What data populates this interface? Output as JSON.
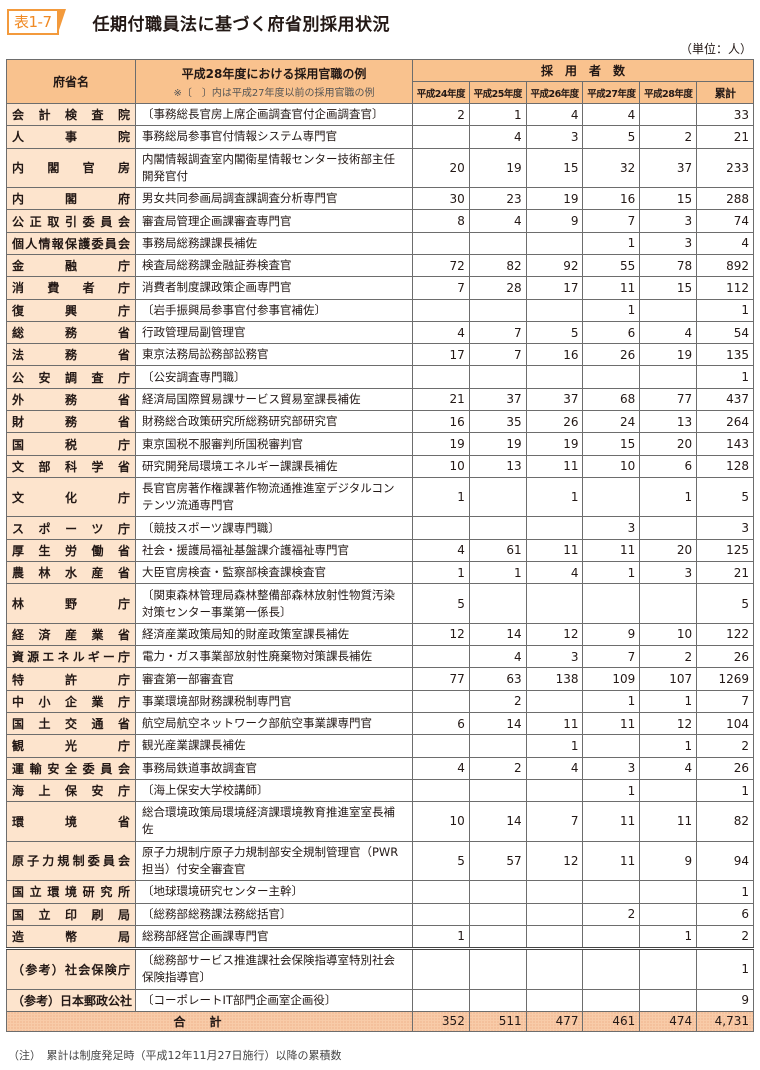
{
  "badge": "表1-7",
  "title": "任期付職員法に基づく府省別採用状況",
  "unit": "（単位：人）",
  "header": {
    "name": "府省名",
    "post": "平成28年度における採用官職の例",
    "post_note": "※〔　〕内は平成27年度以前の採用官職の例",
    "count_group": "採　用　者　数",
    "years": [
      "平成24年度",
      "平成25年度",
      "平成26年度",
      "平成27年度",
      "平成28年度"
    ],
    "cumulative": "累計"
  },
  "rows": [
    {
      "name": "会計検査院",
      "post": "〔事務総長官房上席企画調査官付企画調査官〕",
      "v": [
        "2",
        "1",
        "4",
        "4",
        "",
        "33"
      ]
    },
    {
      "name": "人事院",
      "post": "事務総局参事官付情報システム専門官",
      "v": [
        "",
        "4",
        "3",
        "5",
        "2",
        "21"
      ]
    },
    {
      "name": "内閣官房",
      "post": "内閣情報調査室内閣衛星情報センター技術部主任開発官付",
      "v": [
        "20",
        "19",
        "15",
        "32",
        "37",
        "233"
      ],
      "double": true
    },
    {
      "name": "内閣府",
      "post": "男女共同参画局調査課調査分析専門官",
      "v": [
        "30",
        "23",
        "19",
        "16",
        "15",
        "288"
      ]
    },
    {
      "name": "公正取引委員会",
      "post": "審査局管理企画課審査専門官",
      "v": [
        "8",
        "4",
        "9",
        "7",
        "3",
        "74"
      ]
    },
    {
      "name": "個人情報保護委員会",
      "post": "事務局総務課課長補佐",
      "v": [
        "",
        "",
        "",
        "1",
        "3",
        "4"
      ]
    },
    {
      "name": "金融庁",
      "post": "検査局総務課金融証券検査官",
      "v": [
        "72",
        "82",
        "92",
        "55",
        "78",
        "892"
      ]
    },
    {
      "name": "消費者庁",
      "post": "消費者制度課政策企画専門官",
      "v": [
        "7",
        "28",
        "17",
        "11",
        "15",
        "112"
      ]
    },
    {
      "name": "復興庁",
      "post": "〔岩手振興局参事官付参事官補佐〕",
      "v": [
        "",
        "",
        "",
        "1",
        "",
        "1"
      ]
    },
    {
      "name": "総務省",
      "post": "行政管理局副管理官",
      "v": [
        "4",
        "7",
        "5",
        "6",
        "4",
        "54"
      ]
    },
    {
      "name": "法務省",
      "post": "東京法務局訟務部訟務官",
      "v": [
        "17",
        "7",
        "16",
        "26",
        "19",
        "135"
      ]
    },
    {
      "name": "公安調査庁",
      "post": "〔公安調査専門職〕",
      "v": [
        "",
        "",
        "",
        "",
        "",
        "1"
      ]
    },
    {
      "name": "外務省",
      "post": "経済局国際貿易課サービス貿易室課長補佐",
      "v": [
        "21",
        "37",
        "37",
        "68",
        "77",
        "437"
      ]
    },
    {
      "name": "財務省",
      "post": "財務総合政策研究所総務研究部研究官",
      "v": [
        "16",
        "35",
        "26",
        "24",
        "13",
        "264"
      ]
    },
    {
      "name": "国税庁",
      "post": "東京国税不服審判所国税審判官",
      "v": [
        "19",
        "19",
        "19",
        "15",
        "20",
        "143"
      ]
    },
    {
      "name": "文部科学省",
      "post": "研究開発局環境エネルギー課課長補佐",
      "v": [
        "10",
        "13",
        "11",
        "10",
        "6",
        "128"
      ]
    },
    {
      "name": "文化庁",
      "post": "長官官房著作権課著作物流通推進室デジタルコンテンツ流通専門官",
      "v": [
        "1",
        "",
        "1",
        "",
        "1",
        "5"
      ],
      "double": true
    },
    {
      "name": "スポーツ庁",
      "post": "〔競技スポーツ課専門職〕",
      "v": [
        "",
        "",
        "",
        "3",
        "",
        "3"
      ]
    },
    {
      "name": "厚生労働省",
      "post": "社会・援護局福祉基盤課介護福祉専門官",
      "v": [
        "4",
        "61",
        "11",
        "11",
        "20",
        "125"
      ]
    },
    {
      "name": "農林水産省",
      "post": "大臣官房検査・監察部検査課検査官",
      "v": [
        "1",
        "1",
        "4",
        "1",
        "3",
        "21"
      ]
    },
    {
      "name": "林野庁",
      "post": "〔関東森林管理局森林整備部森林放射性物質汚染対策センター事業第一係長〕",
      "v": [
        "5",
        "",
        "",
        "",
        "",
        "5"
      ],
      "double": true
    },
    {
      "name": "経済産業省",
      "post": "経済産業政策局知的財産政策室課長補佐",
      "v": [
        "12",
        "14",
        "12",
        "9",
        "10",
        "122"
      ]
    },
    {
      "name": "資源エネルギー庁",
      "post": "電力・ガス事業部放射性廃棄物対策課長補佐",
      "v": [
        "",
        "4",
        "3",
        "7",
        "2",
        "26"
      ]
    },
    {
      "name": "特許庁",
      "post": "審査第一部審査官",
      "v": [
        "77",
        "63",
        "138",
        "109",
        "107",
        "1269"
      ]
    },
    {
      "name": "中小企業庁",
      "post": "事業環境部財務課税制専門官",
      "v": [
        "",
        "2",
        "",
        "1",
        "1",
        "7"
      ]
    },
    {
      "name": "国土交通省",
      "post": "航空局航空ネットワーク部航空事業課専門官",
      "v": [
        "6",
        "14",
        "11",
        "11",
        "12",
        "104"
      ]
    },
    {
      "name": "観光庁",
      "post": "観光産業課課長補佐",
      "v": [
        "",
        "",
        "1",
        "",
        "1",
        "2"
      ]
    },
    {
      "name": "運輸安全委員会",
      "post": "事務局鉄道事故調査官",
      "v": [
        "4",
        "2",
        "4",
        "3",
        "4",
        "26"
      ]
    },
    {
      "name": "海上保安庁",
      "post": "〔海上保安大学校講師〕",
      "v": [
        "",
        "",
        "",
        "1",
        "",
        "1"
      ]
    },
    {
      "name": "環境省",
      "post": "総合環境政策局環境経済課環境教育推進室室長補佐",
      "v": [
        "10",
        "14",
        "7",
        "11",
        "11",
        "82"
      ],
      "double": true
    },
    {
      "name": "原子力規制委員会",
      "post": "原子力規制庁原子力規制部安全規制管理官（PWR担当）付安全審査官",
      "v": [
        "5",
        "57",
        "12",
        "11",
        "9",
        "94"
      ],
      "double": true
    },
    {
      "name": "国立環境研究所",
      "post": "〔地球環境研究センター主幹〕",
      "v": [
        "",
        "",
        "",
        "",
        "",
        "1"
      ]
    },
    {
      "name": "国立印刷局",
      "post": "〔総務部総務課法務総括官〕",
      "v": [
        "",
        "",
        "",
        "2",
        "",
        "6"
      ]
    },
    {
      "name": "造幣局",
      "post": "総務部経営企画課専門官",
      "v": [
        "1",
        "",
        "",
        "",
        "1",
        "2"
      ]
    },
    {
      "name": "（参考）社会保険庁",
      "post": "〔総務部サービス推進課社会保険指導室特別社会保険指導官〕",
      "v": [
        "",
        "",
        "",
        "",
        "",
        "1"
      ],
      "double": true,
      "sep": true
    },
    {
      "name": "（参考）日本郵政公社",
      "post": "〔コーポレートIT部門企画室企画役〕",
      "v": [
        "",
        "",
        "",
        "",
        "",
        "9"
      ]
    }
  ],
  "total": {
    "label": "合計",
    "v": [
      "352",
      "511",
      "477",
      "461",
      "474",
      "4,731"
    ]
  },
  "note": "（注）　累計は制度発足時（平成12年11月27日施行）以降の累積数",
  "colors": {
    "header_bg": "#f9c28e",
    "name_bg": "#fde4cd",
    "accent": "#f39a3c"
  }
}
